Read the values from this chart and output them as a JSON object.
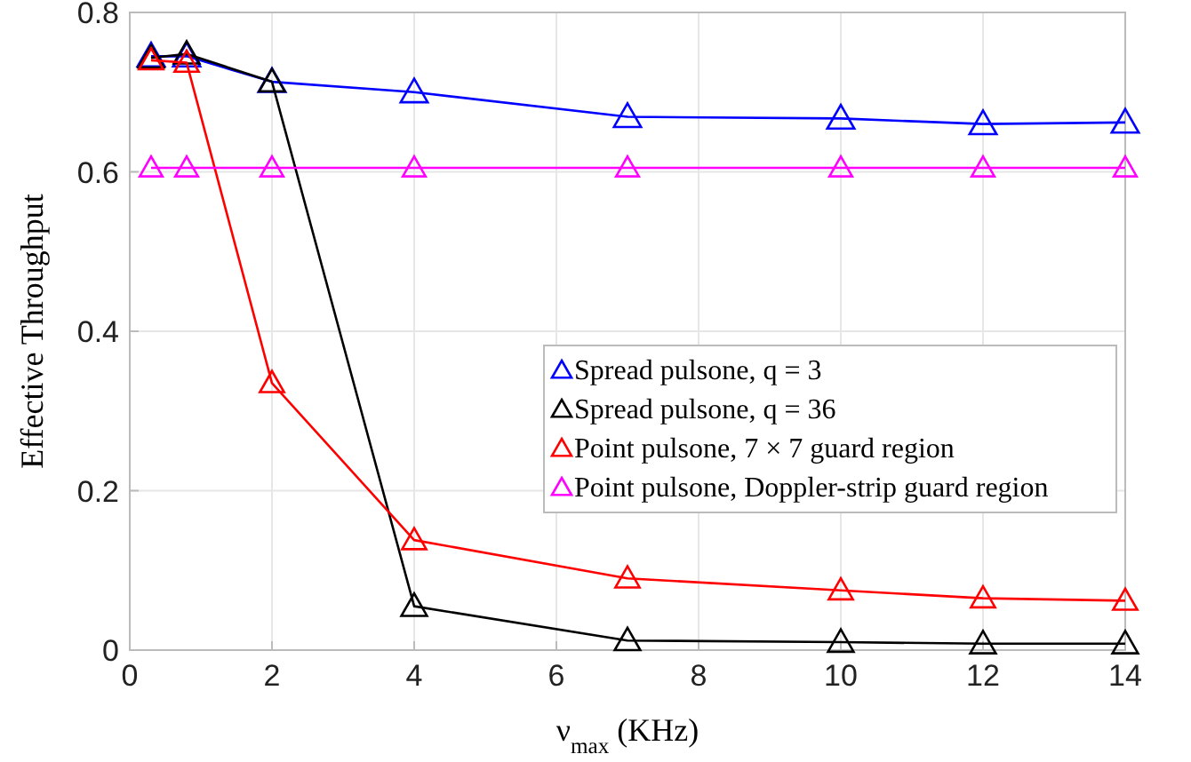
{
  "chart_data": {
    "type": "line",
    "xlabel": "ν$_{max}$ (KHz)",
    "ylabel": "Effective Throughput",
    "x": [
      0.3,
      0.8,
      2,
      4,
      7,
      10,
      12,
      14
    ],
    "xlim": [
      0,
      14
    ],
    "xticks": [
      0,
      2,
      4,
      6,
      8,
      10,
      12,
      14
    ],
    "ylim": [
      0,
      0.8
    ],
    "yticks": [
      0,
      0.2,
      0.4,
      0.6,
      0.8
    ],
    "grid": true,
    "legend": "right",
    "marker": "triangle",
    "line_style": "solid",
    "series": [
      {
        "name": "Spread pulsone, q = 3",
        "color": "#0000ff",
        "values": [
          0.745,
          0.745,
          0.713,
          0.7,
          0.669,
          0.667,
          0.66,
          0.662
        ]
      },
      {
        "name": "Spread pulsone, q = 36",
        "color": "#000000",
        "values": [
          0.743,
          0.748,
          0.713,
          0.055,
          0.012,
          0.01,
          0.008,
          0.008
        ]
      },
      {
        "name": "Point pulsone, 7 × 7 guard region",
        "color": "#ff0000",
        "values": [
          0.74,
          0.737,
          0.335,
          0.138,
          0.09,
          0.075,
          0.065,
          0.062
        ]
      },
      {
        "name": "Point pulsone, Doppler-strip guard region",
        "color": "#ff00ff",
        "values": [
          0.605,
          0.605,
          0.605,
          0.605,
          0.605,
          0.605,
          0.605,
          0.605
        ]
      }
    ]
  }
}
